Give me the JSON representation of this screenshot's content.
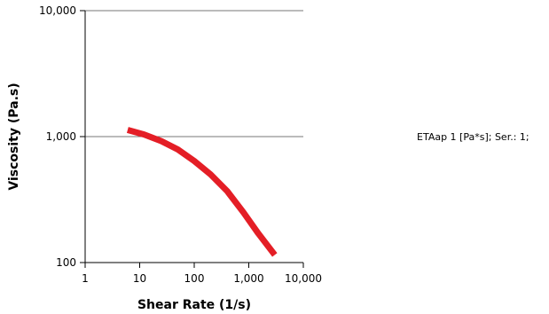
{
  "chart_data": {
    "type": "line",
    "xlabel": "Shear Rate (1/s)",
    "ylabel": "Viscosity (Pa.s)",
    "x_scale": "log",
    "y_scale": "log",
    "xlim": [
      1,
      10000
    ],
    "ylim": [
      100,
      10000
    ],
    "x_ticks": [
      1,
      10,
      100,
      1000,
      10000
    ],
    "x_tick_labels": [
      "1",
      "10",
      "100",
      "1,000",
      "10,000"
    ],
    "y_ticks": [
      100,
      1000,
      10000
    ],
    "y_tick_labels": [
      "100",
      "1,000",
      "10,000"
    ],
    "grid": "horizontal",
    "legend_placement": "right",
    "series": [
      {
        "name": "ETAap 1  [Pa*s]; Ser.: 1;",
        "color": "#e41e26",
        "x": [
          6,
          12,
          25,
          50,
          100,
          200,
          400,
          800,
          1500,
          3000
        ],
        "y": [
          1130,
          1040,
          920,
          790,
          640,
          500,
          370,
          250,
          170,
          115
        ]
      }
    ]
  }
}
